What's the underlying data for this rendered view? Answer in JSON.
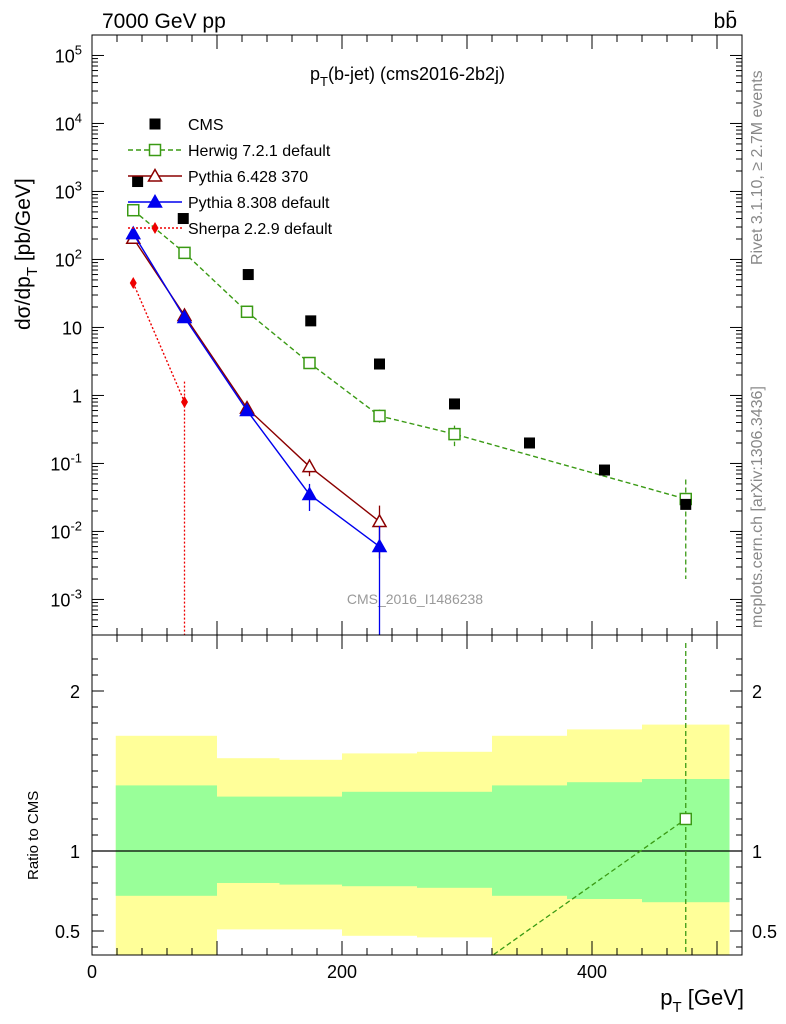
{
  "header": {
    "beam_label": "7000 GeV pp",
    "process_label": "bb̄",
    "side_label_top": "Rivet 3.1.10, ≥ 2.7M events",
    "side_label_bottom": "mcplots.cern.ch [arXiv:1306.3436]",
    "watermark": "CMS_2016_I1486238"
  },
  "chart_data": [
    {
      "type": "scatter",
      "panel": "main",
      "title": "p_T(b-jet) (cms2016-2b2j)",
      "ylabel": "dσ/dp_T [pb/GeV]",
      "yscale": "log",
      "ylim": [
        0.0003,
        200000
      ],
      "xlim": [
        0,
        520
      ],
      "y_tick_labels": [
        "10^-3",
        "10^-2",
        "10^-1",
        "1",
        "10",
        "10^2",
        "10^3",
        "10^4",
        "10^5"
      ],
      "legend_position": "upper-left",
      "series": [
        {
          "name": "CMS",
          "color": "#000000",
          "marker": "square-filled",
          "line": "none",
          "x": [
            36.5,
            73,
            125,
            175,
            230,
            290,
            350,
            410,
            475
          ],
          "y": [
            1400,
            400,
            60,
            12.5,
            2.9,
            0.75,
            0.2,
            0.08,
            0.025
          ]
        },
        {
          "name": "Herwig 7.2.1 default",
          "color": "#3a9a14",
          "marker": "square-open",
          "line": "dashed",
          "x": [
            33,
            74,
            124,
            174,
            230,
            290,
            475
          ],
          "y": [
            530,
            125,
            17,
            3.0,
            0.5,
            0.27,
            0.03
          ],
          "yerr": [
            0,
            0,
            0,
            0,
            0.12,
            0.09,
            0.028
          ]
        },
        {
          "name": "Pythia 6.428 370",
          "color": "#8b0000",
          "marker": "triangle-open",
          "line": "solid",
          "x": [
            33,
            74,
            124,
            174,
            230
          ],
          "y": [
            205,
            15,
            0.65,
            0.09,
            0.014
          ],
          "yerr": [
            0,
            0,
            0,
            0.025,
            0.01
          ]
        },
        {
          "name": "Pythia 8.308 default",
          "color": "#0000ee",
          "marker": "triangle-filled",
          "line": "solid",
          "x": [
            33,
            74,
            124,
            174,
            230
          ],
          "y": [
            240,
            14,
            0.6,
            0.035,
            0.006
          ],
          "yerr": [
            0,
            0,
            0,
            0.015,
            0.006
          ]
        },
        {
          "name": "Sherpa 2.2.9 default",
          "color": "#ee0000",
          "marker": "diamond-filled",
          "line": "dotted",
          "x": [
            33,
            74
          ],
          "y": [
            45,
            0.8
          ],
          "yerr": [
            0,
            0.8
          ]
        }
      ]
    },
    {
      "type": "line",
      "panel": "ratio",
      "ylabel": "Ratio to CMS",
      "xlabel": "p_T [GeV]",
      "ylim": [
        0.35,
        2.35
      ],
      "xlim": [
        0,
        520
      ],
      "x_ticks": [
        0,
        200,
        400
      ],
      "y_ticks": [
        0.5,
        1,
        2
      ],
      "bins": [
        19,
        100,
        150,
        200,
        260,
        320,
        380,
        440,
        510
      ],
      "band_yellow_upper": [
        1.72,
        1.58,
        1.57,
        1.61,
        1.62,
        1.72,
        1.76,
        1.79
      ],
      "band_yellow_lower": [
        0.35,
        0.51,
        0.51,
        0.47,
        0.46,
        0.35,
        0.35,
        0.35
      ],
      "band_green_upper": [
        1.41,
        1.34,
        1.34,
        1.37,
        1.37,
        1.41,
        1.43,
        1.45
      ],
      "band_green_lower": [
        0.72,
        0.8,
        0.79,
        0.78,
        0.77,
        0.72,
        0.7,
        0.68
      ],
      "band_yellow_color": "#ffff99",
      "band_green_color": "#99ff99",
      "series": [
        {
          "name": "Herwig 7.2.1 default",
          "color": "#3a9a14",
          "x": [
            290,
            475
          ],
          "y": [
            0.18,
            1.2
          ],
          "yerr": [
            0,
            1.1
          ]
        }
      ]
    }
  ]
}
